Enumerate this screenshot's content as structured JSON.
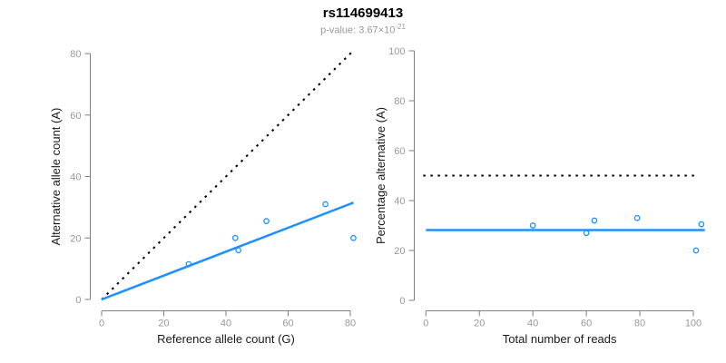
{
  "header": {
    "title": "rs114699413",
    "subtitle_base": "p-value: 3.67×10",
    "subtitle_exponent": "-21"
  },
  "colors": {
    "accent_blue": "#1E90FF",
    "dotted_black": "#000000",
    "axis_gray": "#808080",
    "tick_label_gray": "#999999",
    "label_black": "#1a1a1a",
    "background": "#FFFFFF"
  },
  "chart_data": [
    {
      "type": "scatter",
      "name": "allele-counts",
      "xlabel": "Reference allele count (G)",
      "ylabel": "Alternative allele count (A)",
      "xlim": [
        0,
        83
      ],
      "ylim": [
        0,
        83
      ],
      "xticks": [
        0,
        20,
        40,
        60,
        80
      ],
      "yticks": [
        0,
        20,
        40,
        60,
        80
      ],
      "grid": false,
      "legend": false,
      "marker": "open-circle",
      "point_color": "#1E90FF",
      "points": [
        {
          "x": 28,
          "y": 11.5
        },
        {
          "x": 43,
          "y": 20
        },
        {
          "x": 44,
          "y": 16
        },
        {
          "x": 53,
          "y": 25.5
        },
        {
          "x": 72,
          "y": 31
        },
        {
          "x": 81,
          "y": 20
        }
      ],
      "lines": [
        {
          "name": "identity-line",
          "style": "dotted",
          "color": "#000000",
          "x": [
            0,
            80.5
          ],
          "y": [
            0,
            80.5
          ]
        },
        {
          "name": "fit-line",
          "style": "solid",
          "color": "#1E90FF",
          "x": [
            0,
            81
          ],
          "y": [
            0,
            31.5
          ]
        }
      ]
    },
    {
      "type": "scatter",
      "name": "percentage-vs-depth",
      "xlabel": "Total number of reads",
      "ylabel": "Percentage alternative (A)",
      "xlim": [
        0,
        104
      ],
      "ylim": [
        0,
        100
      ],
      "xticks": [
        0,
        20,
        40,
        60,
        80,
        100
      ],
      "yticks": [
        0,
        20,
        40,
        60,
        80,
        100
      ],
      "grid": false,
      "legend": false,
      "marker": "open-circle",
      "point_color": "#1E90FF",
      "points": [
        {
          "x": 40,
          "y": 30
        },
        {
          "x": 60,
          "y": 27
        },
        {
          "x": 63,
          "y": 32
        },
        {
          "x": 79,
          "y": 33
        },
        {
          "x": 101,
          "y": 20
        },
        {
          "x": 103,
          "y": 30.5
        }
      ],
      "lines": [
        {
          "name": "expected-50pct-line",
          "style": "dotted",
          "color": "#000000",
          "x": [
            -1,
            102
          ],
          "y": [
            50,
            50
          ]
        },
        {
          "name": "mean-fraction-line",
          "style": "solid",
          "color": "#1E90FF",
          "x": [
            0,
            104.3
          ],
          "y": [
            28.2,
            28.2
          ]
        }
      ]
    }
  ]
}
